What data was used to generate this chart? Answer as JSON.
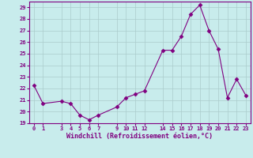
{
  "x": [
    0,
    1,
    3,
    4,
    5,
    6,
    7,
    9,
    10,
    11,
    12,
    14,
    15,
    16,
    17,
    18,
    19,
    20,
    21,
    22,
    23
  ],
  "y": [
    22.3,
    20.7,
    20.9,
    20.7,
    19.7,
    19.3,
    19.7,
    20.4,
    21.2,
    21.5,
    21.8,
    25.3,
    25.3,
    26.5,
    28.4,
    29.2,
    27.0,
    25.4,
    21.2,
    22.8,
    21.4
  ],
  "xlabel": "Windchill (Refroidissement éolien,°C)",
  "xlim": [
    -0.5,
    23.5
  ],
  "ylim": [
    19,
    29.5
  ],
  "yticks": [
    19,
    20,
    21,
    22,
    23,
    24,
    25,
    26,
    27,
    28,
    29
  ],
  "xticks": [
    0,
    1,
    3,
    4,
    5,
    6,
    7,
    9,
    10,
    11,
    12,
    14,
    15,
    16,
    17,
    18,
    19,
    20,
    21,
    22,
    23
  ],
  "line_color": "#800080",
  "marker": "D",
  "bg_color": "#c8ecec",
  "grid_color": "#aacccc",
  "font_color": "#800080",
  "font_family": "monospace",
  "tick_fontsize": 5.0,
  "xlabel_fontsize": 6.0,
  "linewidth": 0.8,
  "markersize": 2.5
}
